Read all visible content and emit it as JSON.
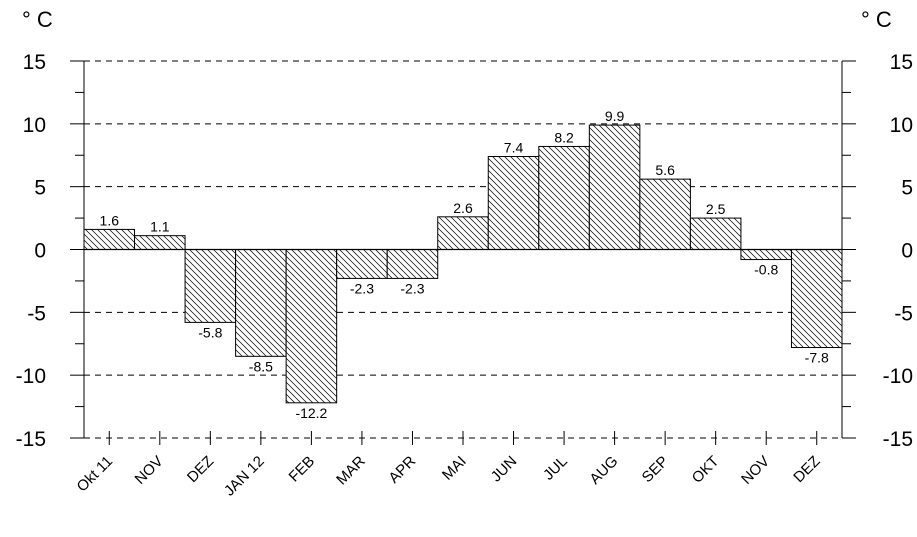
{
  "chart_data": {
    "type": "bar",
    "left_axis_label": "° C",
    "right_axis_label": "° C",
    "categories": [
      "Okt 11",
      "NOV",
      "DEZ",
      "JAN 12",
      "FEB",
      "MAR",
      "APR",
      "MAI",
      "JUN",
      "JUL",
      "AUG",
      "SEP",
      "OKT",
      "NOV",
      "DEZ"
    ],
    "values": [
      1.6,
      1.1,
      -5.8,
      -8.5,
      -12.2,
      -2.3,
      -2.3,
      2.6,
      7.4,
      8.2,
      9.9,
      5.6,
      2.5,
      -0.8,
      -7.8
    ],
    "value_labels": [
      "1.6",
      "1.1",
      "-5.8",
      "-8.5",
      "-12.2",
      "-2.3",
      "-2.3",
      "2.6",
      "7.4",
      "8.2",
      "9.9",
      "5.6",
      "2.5",
      "-0.8",
      "-7.8"
    ],
    "ylim": [
      -15,
      15
    ],
    "yticks": [
      15,
      10,
      5,
      0,
      -5,
      -10,
      -15
    ],
    "ytick_labels": [
      "15",
      "10",
      "5",
      "0",
      "-5",
      "-10",
      "-15"
    ],
    "minor_step": 2.5,
    "grid": "dashed-horizontal",
    "bar_fill": "diagonal-hatch",
    "colors": {
      "axis": "#000000",
      "grid": "#000000",
      "hatch": "#000000",
      "background": "#ffffff"
    }
  }
}
